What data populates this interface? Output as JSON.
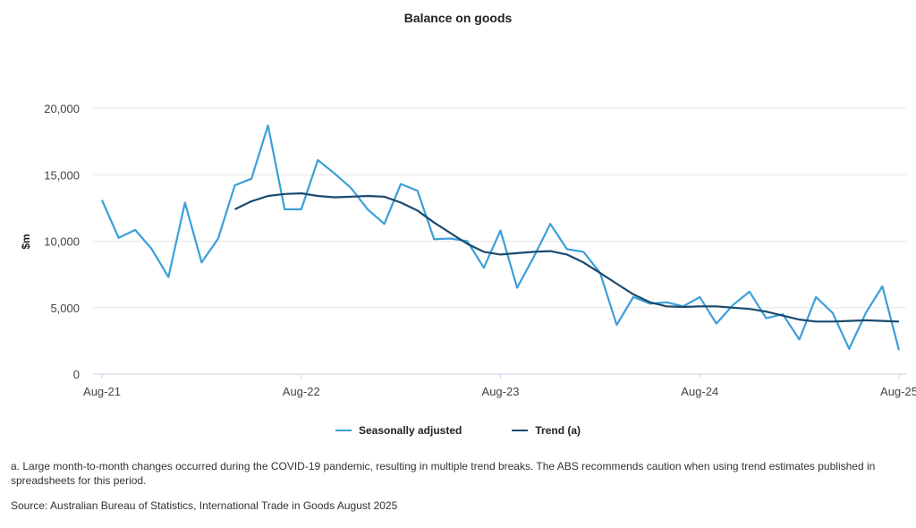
{
  "chart_data": {
    "type": "line",
    "title": "Balance on goods",
    "ylabel": "$m",
    "xlabel": "",
    "ylim": [
      0,
      20000
    ],
    "yticks": [
      "0",
      "5,000",
      "10,000",
      "15,000",
      "20,000"
    ],
    "ytick_values": [
      0,
      5000,
      10000,
      15000,
      20000
    ],
    "xtick_labels": [
      "Aug-21",
      "Aug-22",
      "Aug-23",
      "Aug-24",
      "Aug-25"
    ],
    "grid": true,
    "legend_position": "bottom",
    "x": [
      "Aug-21",
      "Sep-21",
      "Oct-21",
      "Nov-21",
      "Dec-21",
      "Jan-22",
      "Feb-22",
      "Mar-22",
      "Apr-22",
      "May-22",
      "Jun-22",
      "Jul-22",
      "Aug-22",
      "Sep-22",
      "Oct-22",
      "Nov-22",
      "Dec-22",
      "Jan-23",
      "Feb-23",
      "Mar-23",
      "Apr-23",
      "May-23",
      "Jun-23",
      "Jul-23",
      "Aug-23",
      "Sep-23",
      "Oct-23",
      "Nov-23",
      "Dec-23",
      "Jan-24",
      "Feb-24",
      "Mar-24",
      "Apr-24",
      "May-24",
      "Jun-24",
      "Jul-24",
      "Aug-24",
      "Sep-24",
      "Oct-24",
      "Nov-24",
      "Dec-24",
      "Jan-25",
      "Feb-25",
      "Mar-25",
      "Apr-25",
      "May-25",
      "Jun-25",
      "Jul-25",
      "Aug-25"
    ],
    "series": [
      {
        "name": "Seasonally adjusted",
        "color": "#3b9fd8",
        "values": [
          13100,
          10250,
          10850,
          9400,
          7300,
          12900,
          8400,
          10200,
          14200,
          14700,
          18700,
          12400,
          12400,
          16100,
          15100,
          14000,
          12400,
          11300,
          14300,
          13800,
          10150,
          10200,
          10000,
          8000,
          10800,
          6500,
          8800,
          11300,
          9400,
          9200,
          7600,
          3700,
          5800,
          5300,
          5400,
          5100,
          5800,
          3800,
          5200,
          6200,
          4200,
          4500,
          2600,
          5800,
          4600,
          1900,
          4600,
          6600,
          1800
        ]
      },
      {
        "name": "Trend (a)",
        "color": "#1b4a6e",
        "values": [
          null,
          null,
          null,
          null,
          null,
          null,
          null,
          null,
          12400,
          13000,
          13400,
          13550,
          13600,
          13400,
          13300,
          13350,
          13400,
          13350,
          12900,
          12300,
          11400,
          10600,
          9800,
          9200,
          9000,
          9100,
          9200,
          9250,
          9000,
          8400,
          7600,
          6800,
          6000,
          5400,
          5100,
          5050,
          5100,
          5100,
          5000,
          4900,
          4700,
          4400,
          4100,
          3950,
          3950,
          4000,
          4050,
          4000,
          3950
        ]
      }
    ]
  },
  "footnote": "a. Large month-to-month changes occurred during the COVID-19 pandemic, resulting in multiple trend breaks. The ABS recommends caution when using trend estimates published in spreadsheets for this period.",
  "source": "Source: Australian Bureau of Statistics, International Trade in Goods August 2025"
}
